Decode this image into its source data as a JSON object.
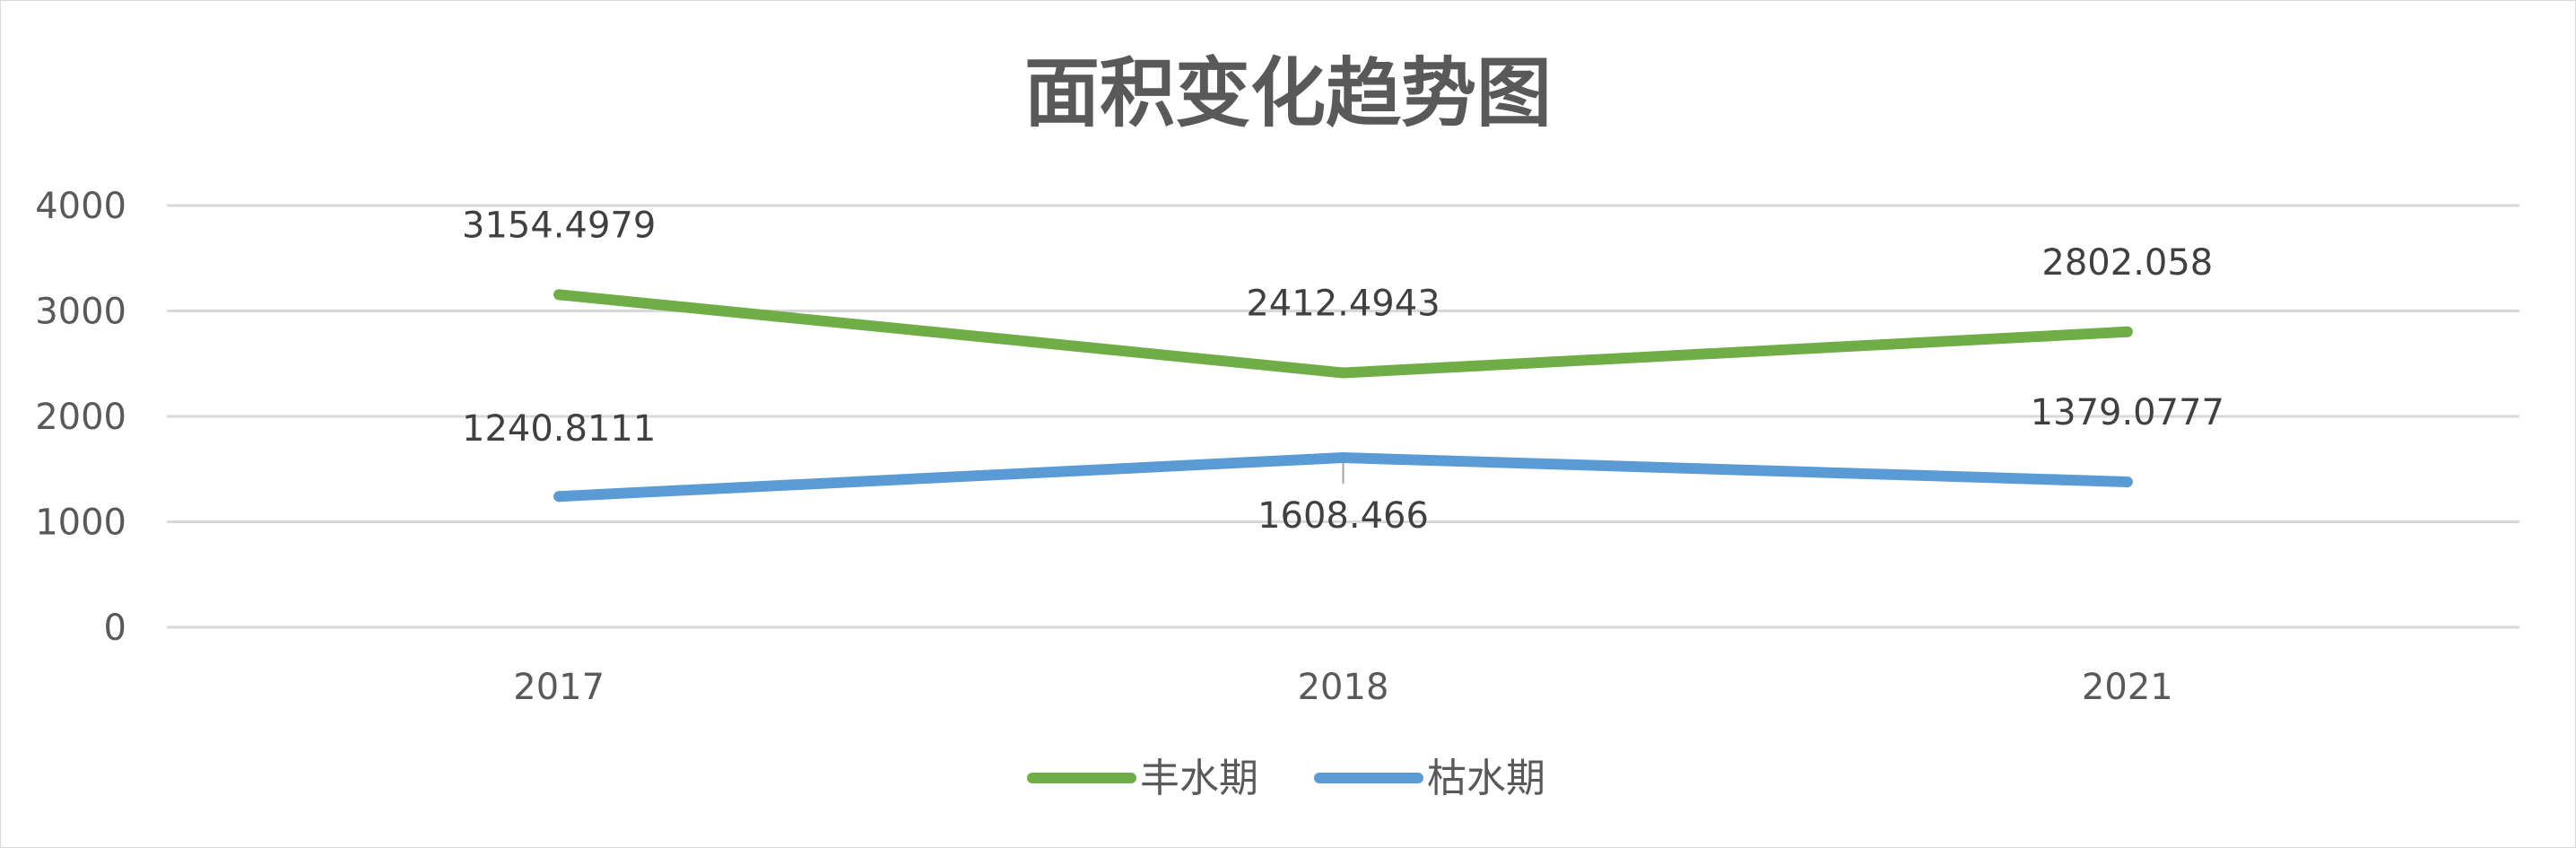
{
  "chart_data": {
    "type": "line",
    "title": "面积变化趋势图",
    "categories": [
      "2017",
      "2018",
      "2021"
    ],
    "series": [
      {
        "name": "丰水期",
        "values": [
          3154.4979,
          2412.4943,
          2802.058
        ],
        "labels": [
          "3154.4979",
          "2412.4943",
          "2802.058"
        ],
        "color": "#70ad47"
      },
      {
        "name": "枯水期",
        "values": [
          1240.8111,
          1608.466,
          1379.0777
        ],
        "labels": [
          "1240.8111",
          "1608.466",
          "1379.0777"
        ],
        "color": "#5b9bd5"
      }
    ],
    "ylim": [
      0,
      4000
    ],
    "yticks": [
      0,
      1000,
      2000,
      3000,
      4000
    ],
    "grid": true,
    "legend": "bottom-center"
  }
}
